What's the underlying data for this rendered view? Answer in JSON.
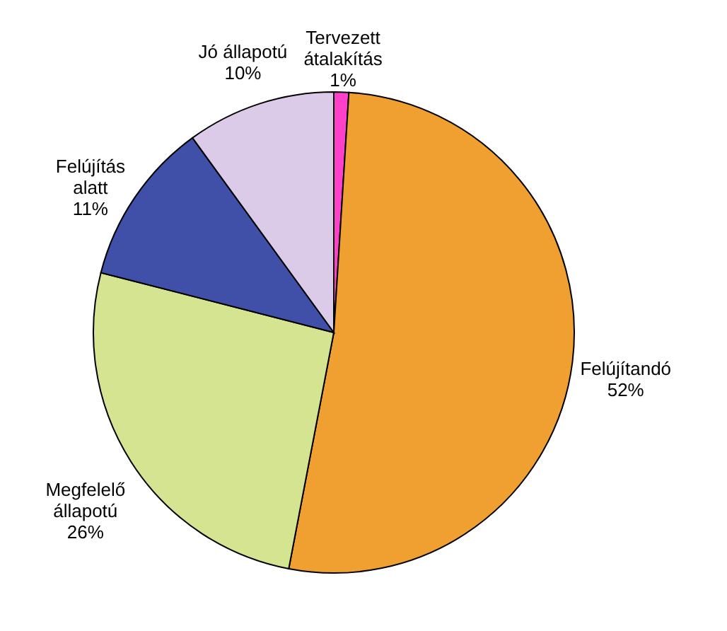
{
  "chart_data": {
    "type": "pie",
    "categories": [
      "Tervezett átalakítás",
      "Felújítandó",
      "Megfelelő állapotú",
      "Felújítás alatt",
      "Jó állapotú"
    ],
    "values": [
      1,
      52,
      26,
      11,
      10
    ],
    "value_labels": [
      "1%",
      "52%",
      "26%",
      "11%",
      "10%"
    ],
    "colors": [
      "#ff40c8",
      "#f0a030",
      "#d4e490",
      "#4050a8",
      "#dccbe8"
    ]
  }
}
